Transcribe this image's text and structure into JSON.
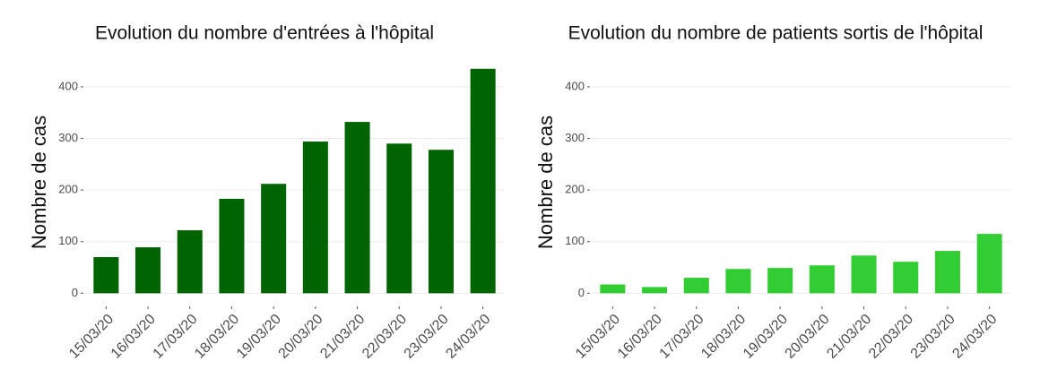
{
  "chart_data": [
    {
      "type": "bar",
      "title": "Evolution du nombre d'entrées à l'hôpital",
      "y_label": "Nombre de cas",
      "categories": [
        "15/03/20",
        "16/03/20",
        "17/03/20",
        "18/03/20",
        "19/03/20",
        "20/03/20",
        "21/03/20",
        "22/03/20",
        "23/03/20",
        "24/03/20"
      ],
      "values": [
        70,
        89,
        122,
        183,
        212,
        294,
        332,
        290,
        278,
        435
      ],
      "color": "#006400",
      "ylim": [
        -22,
        452
      ],
      "yticks": [
        0,
        100,
        200,
        300,
        400
      ],
      "grid": true
    },
    {
      "type": "bar",
      "title": "Evolution du nombre de patients sortis de l'hôpital",
      "y_label": "Nombre de cas",
      "categories": [
        "15/03/20",
        "16/03/20",
        "17/03/20",
        "18/03/20",
        "19/03/20",
        "20/03/20",
        "21/03/20",
        "22/03/20",
        "23/03/20",
        "24/03/20"
      ],
      "values": [
        17,
        12,
        30,
        47,
        49,
        54,
        73,
        61,
        82,
        115
      ],
      "color": "#32cd32",
      "ylim": [
        -22,
        452
      ],
      "yticks": [
        0,
        100,
        200,
        300,
        400
      ],
      "grid": true
    }
  ]
}
